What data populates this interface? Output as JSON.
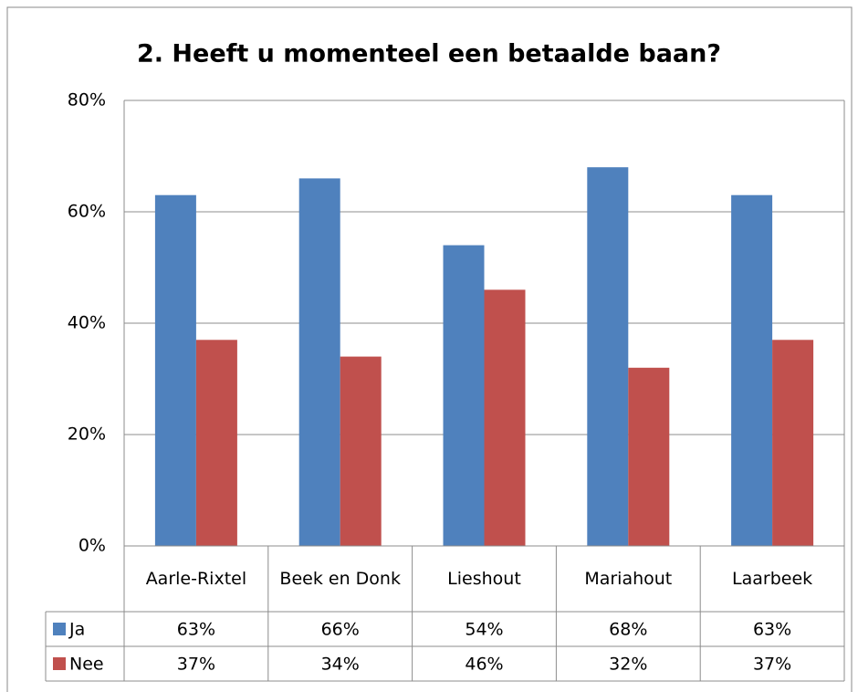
{
  "chart_data": {
    "type": "bar",
    "title": "2. Heeft u momenteel een betaalde baan?",
    "categories": [
      "Aarle-Rixtel",
      "Beek en Donk",
      "Lieshout",
      "Mariahout",
      "Laarbeek"
    ],
    "series": [
      {
        "name": "Ja",
        "color": "#4f81bd",
        "values": [
          63,
          66,
          54,
          68,
          63
        ],
        "value_labels": [
          "63%",
          "66%",
          "54%",
          "68%",
          "63%"
        ]
      },
      {
        "name": "Nee",
        "color": "#c0504d",
        "values": [
          37,
          34,
          46,
          32,
          37
        ],
        "value_labels": [
          "37%",
          "34%",
          "46%",
          "32%",
          "37%"
        ]
      }
    ],
    "ylim": [
      0,
      80
    ],
    "yticks": [
      {
        "value": 0,
        "label": "0%"
      },
      {
        "value": 20,
        "label": "20%"
      },
      {
        "value": 40,
        "label": "40%"
      },
      {
        "value": 60,
        "label": "60%"
      },
      {
        "value": 80,
        "label": "80%"
      }
    ],
    "grid": true,
    "data_table": true
  }
}
